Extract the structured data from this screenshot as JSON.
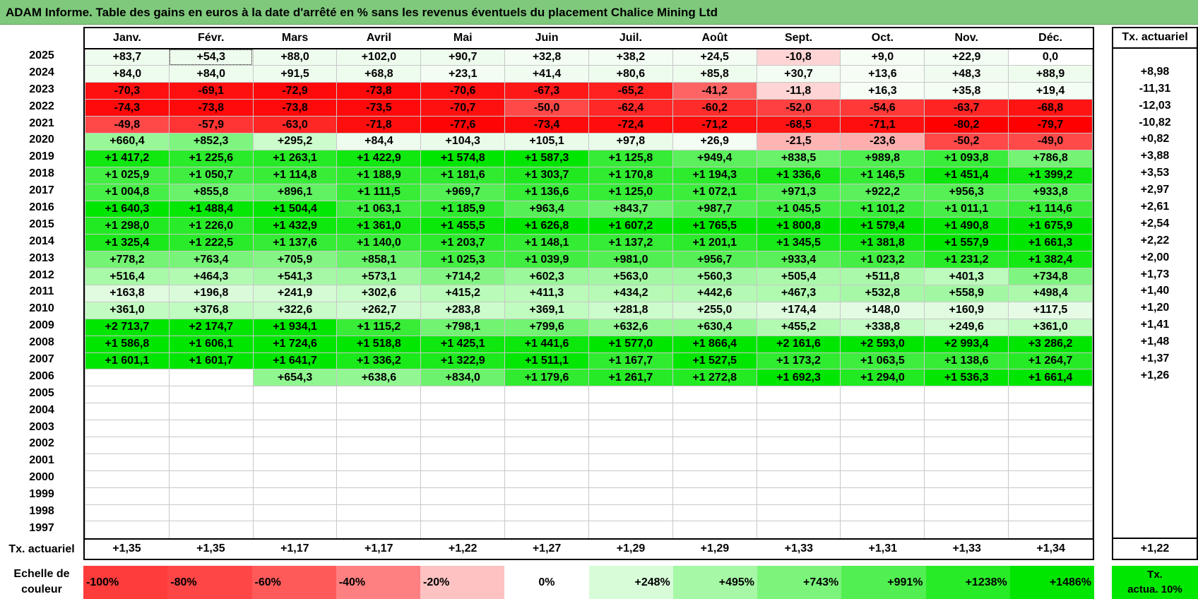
{
  "title": "ADAM Informe. Table des gains en euros à la date d'arrêté en % sans les revenus éventuels du placement Chalice Mining Ltd",
  "months": [
    "Janv.",
    "Févr.",
    "Mars",
    "Avril",
    "Mai",
    "Juin",
    "Juil.",
    "Août",
    "Sept.",
    "Oct.",
    "Nov.",
    "Déc."
  ],
  "act_header": "Tx. actuariel",
  "rows": [
    {
      "year": "2025",
      "act": "",
      "cells": [
        [
          "+83,7",
          "#eefcee"
        ],
        [
          "+54,3",
          "#eefcee"
        ],
        [
          "+88,0",
          "#eefcee"
        ],
        [
          "+102,0",
          "#eefcee"
        ],
        [
          "+90,7",
          "#eefcee"
        ],
        [
          "+32,8",
          "#f3fdf3"
        ],
        [
          "+38,2",
          "#f3fdf3"
        ],
        [
          "+24,5",
          "#f3fdf3"
        ],
        [
          "-10,8",
          "#ffd4d4"
        ],
        [
          "+9,0",
          "#f5fdf5"
        ],
        [
          "+22,9",
          "#f3fdf3"
        ],
        [
          "0,0",
          "#ffffff"
        ]
      ]
    },
    {
      "year": "2024",
      "act": "+8,98",
      "cells": [
        [
          "+84,0",
          "#eefcee"
        ],
        [
          "+84,0",
          "#eefcee"
        ],
        [
          "+91,5",
          "#eefcee"
        ],
        [
          "+68,8",
          "#eefcee"
        ],
        [
          "+23,1",
          "#f3fdf3"
        ],
        [
          "+41,4",
          "#f0fcf0"
        ],
        [
          "+80,6",
          "#eefcee"
        ],
        [
          "+85,8",
          "#eefcee"
        ],
        [
          "+30,7",
          "#f3fdf3"
        ],
        [
          "+13,6",
          "#f5fdf5"
        ],
        [
          "+48,3",
          "#f0fcf0"
        ],
        [
          "+88,9",
          "#eefcee"
        ]
      ]
    },
    {
      "year": "2023",
      "act": "-11,31",
      "cells": [
        [
          "-70,3",
          "#ff1010"
        ],
        [
          "-69,1",
          "#ff1010"
        ],
        [
          "-72,9",
          "#ff0a0a"
        ],
        [
          "-73,8",
          "#ff0a0a"
        ],
        [
          "-70,6",
          "#ff1010"
        ],
        [
          "-67,3",
          "#ff1818"
        ],
        [
          "-65,2",
          "#ff2020"
        ],
        [
          "-41,2",
          "#ff6464"
        ],
        [
          "-11,8",
          "#ffd4d4"
        ],
        [
          "+16,3",
          "#f5fdf5"
        ],
        [
          "+35,8",
          "#f3fdf3"
        ],
        [
          "+19,4",
          "#f3fdf3"
        ]
      ]
    },
    {
      "year": "2022",
      "act": "-12,03",
      "cells": [
        [
          "-74,3",
          "#ff0a0a"
        ],
        [
          "-73,8",
          "#ff0a0a"
        ],
        [
          "-73,8",
          "#ff0a0a"
        ],
        [
          "-73,5",
          "#ff0a0a"
        ],
        [
          "-70,7",
          "#ff1010"
        ],
        [
          "-50,0",
          "#ff4848"
        ],
        [
          "-62,4",
          "#ff2828"
        ],
        [
          "-60,2",
          "#ff2c2c"
        ],
        [
          "-52,0",
          "#ff4040"
        ],
        [
          "-54,6",
          "#ff3838"
        ],
        [
          "-63,7",
          "#ff2424"
        ],
        [
          "-68,8",
          "#ff1414"
        ]
      ]
    },
    {
      "year": "2021",
      "act": "-10,82",
      "cells": [
        [
          "-49,8",
          "#ff4848"
        ],
        [
          "-57,9",
          "#ff3434"
        ],
        [
          "-63,0",
          "#ff2626"
        ],
        [
          "-71,8",
          "#ff0e0e"
        ],
        [
          "-77,6",
          "#ff0404"
        ],
        [
          "-73,4",
          "#ff0a0a"
        ],
        [
          "-72,4",
          "#ff0c0c"
        ],
        [
          "-71,2",
          "#ff0e0e"
        ],
        [
          "-68,5",
          "#ff1414"
        ],
        [
          "-71,1",
          "#ff0e0e"
        ],
        [
          "-80,2",
          "#ff0000"
        ],
        [
          "-79,7",
          "#ff0000"
        ]
      ]
    },
    {
      "year": "2020",
      "act": "+0,82",
      "cells": [
        [
          "+660,4",
          "#98f898"
        ],
        [
          "+852,3",
          "#7ef57e"
        ],
        [
          "+295,2",
          "#ccfccc"
        ],
        [
          "+84,4",
          "#eefcee"
        ],
        [
          "+104,3",
          "#eafbea"
        ],
        [
          "+105,1",
          "#eafbea"
        ],
        [
          "+97,8",
          "#eafbea"
        ],
        [
          "+26,9",
          "#f3fdf3"
        ],
        [
          "-21,5",
          "#ffb4b4"
        ],
        [
          "-23,6",
          "#ffaeae"
        ],
        [
          "-50,2",
          "#ff4848"
        ],
        [
          "-49,0",
          "#ff4a4a"
        ]
      ]
    },
    {
      "year": "2019",
      "act": "+3,88",
      "cells": [
        [
          "+1 417,2",
          "#10e810"
        ],
        [
          "+1 225,6",
          "#2aeb2a"
        ],
        [
          "+1 263,1",
          "#26ea26"
        ],
        [
          "+1 422,9",
          "#10e810"
        ],
        [
          "+1 574,8",
          "#00e600"
        ],
        [
          "+1 587,3",
          "#00e600"
        ],
        [
          "+1 125,8",
          "#36ec36"
        ],
        [
          "+949,4",
          "#5cf05c"
        ],
        [
          "+838,5",
          "#6af26a"
        ],
        [
          "+989,8",
          "#50ef50"
        ],
        [
          "+1 093,8",
          "#3aed3a"
        ],
        [
          "+786,8",
          "#74f374"
        ]
      ]
    },
    {
      "year": "2018",
      "act": "+3,53",
      "cells": [
        [
          "+1 025,9",
          "#44ee44"
        ],
        [
          "+1 050,7",
          "#40ed40"
        ],
        [
          "+1 114,8",
          "#38ec38"
        ],
        [
          "+1 188,9",
          "#2eeb2e"
        ],
        [
          "+1 181,6",
          "#30eb30"
        ],
        [
          "+1 303,7",
          "#20e920"
        ],
        [
          "+1 170,8",
          "#30eb30"
        ],
        [
          "+1 194,3",
          "#2eeb2e"
        ],
        [
          "+1 336,6",
          "#1ae91a"
        ],
        [
          "+1 146,5",
          "#34ec34"
        ],
        [
          "+1 451,4",
          "#0ce80c"
        ],
        [
          "+1 399,2",
          "#12e812"
        ]
      ]
    },
    {
      "year": "2017",
      "act": "+2,97",
      "cells": [
        [
          "+1 004,8",
          "#48ee48"
        ],
        [
          "+855,8",
          "#6af26a"
        ],
        [
          "+896,1",
          "#62f162"
        ],
        [
          "+1 111,5",
          "#38ec38"
        ],
        [
          "+969,7",
          "#54ef54"
        ],
        [
          "+1 136,6",
          "#36ec36"
        ],
        [
          "+1 125,0",
          "#36ec36"
        ],
        [
          "+1 072,1",
          "#3ced3c"
        ],
        [
          "+971,3",
          "#54ef54"
        ],
        [
          "+922,2",
          "#5cf05c"
        ],
        [
          "+956,3",
          "#56f056"
        ],
        [
          "+933,8",
          "#5af05a"
        ]
      ]
    },
    {
      "year": "2016",
      "act": "+2,61",
      "cells": [
        [
          "+1 640,3",
          "#00e600"
        ],
        [
          "+1 488,4",
          "#06e706"
        ],
        [
          "+1 504,4",
          "#04e704"
        ],
        [
          "+1 063,1",
          "#3eed3e"
        ],
        [
          "+1 185,9",
          "#2eeb2e"
        ],
        [
          "+963,4",
          "#56f056"
        ],
        [
          "+843,7",
          "#6cf26c"
        ],
        [
          "+987,7",
          "#52ef52"
        ],
        [
          "+1 045,5",
          "#42ed42"
        ],
        [
          "+1 101,2",
          "#3aed3a"
        ],
        [
          "+1 011,1",
          "#48ee48"
        ],
        [
          "+1 114,6",
          "#38ec38"
        ]
      ]
    },
    {
      "year": "2015",
      "act": "+2,54",
      "cells": [
        [
          "+1 298,0",
          "#22ea22"
        ],
        [
          "+1 226,0",
          "#2aeb2a"
        ],
        [
          "+1 432,9",
          "#0ee80e"
        ],
        [
          "+1 361,0",
          "#16e916"
        ],
        [
          "+1 455,5",
          "#0ae80a"
        ],
        [
          "+1 626,8",
          "#00e600"
        ],
        [
          "+1 607,2",
          "#00e600"
        ],
        [
          "+1 765,5",
          "#00e600"
        ],
        [
          "+1 800,8",
          "#00e600"
        ],
        [
          "+1 579,4",
          "#00e600"
        ],
        [
          "+1 490,8",
          "#06e706"
        ],
        [
          "+1 675,9",
          "#00e600"
        ]
      ]
    },
    {
      "year": "2014",
      "act": "+2,22",
      "cells": [
        [
          "+1 325,4",
          "#1ce91c"
        ],
        [
          "+1 222,5",
          "#2aeb2a"
        ],
        [
          "+1 137,6",
          "#36ec36"
        ],
        [
          "+1 140,0",
          "#36ec36"
        ],
        [
          "+1 203,7",
          "#2ceb2c"
        ],
        [
          "+1 148,1",
          "#34ec34"
        ],
        [
          "+1 137,2",
          "#36ec36"
        ],
        [
          "+1 201,1",
          "#2ceb2c"
        ],
        [
          "+1 345,5",
          "#18e918"
        ],
        [
          "+1 381,8",
          "#14e914"
        ],
        [
          "+1 557,9",
          "#00e600"
        ],
        [
          "+1 661,3",
          "#00e600"
        ]
      ]
    },
    {
      "year": "2013",
      "act": "+2,00",
      "cells": [
        [
          "+778,2",
          "#74f374"
        ],
        [
          "+763,4",
          "#78f478"
        ],
        [
          "+705,9",
          "#84f584"
        ],
        [
          "+858,1",
          "#6af26a"
        ],
        [
          "+1 025,3",
          "#44ee44"
        ],
        [
          "+1 039,9",
          "#42ed42"
        ],
        [
          "+981,0",
          "#52ef52"
        ],
        [
          "+956,7",
          "#56f056"
        ],
        [
          "+933,4",
          "#5af05a"
        ],
        [
          "+1 023,2",
          "#44ee44"
        ],
        [
          "+1 231,2",
          "#28eb28"
        ],
        [
          "+1 382,4",
          "#14e914"
        ]
      ]
    },
    {
      "year": "2012",
      "act": "+1,73",
      "cells": [
        [
          "+516,4",
          "#a8f9a8"
        ],
        [
          "+464,3",
          "#b2fab2"
        ],
        [
          "+541,3",
          "#a6f8a6"
        ],
        [
          "+573,1",
          "#a0f8a0"
        ],
        [
          "+714,2",
          "#84f584"
        ],
        [
          "+602,3",
          "#9af79a"
        ],
        [
          "+563,0",
          "#a2f8a2"
        ],
        [
          "+560,3",
          "#a2f8a2"
        ],
        [
          "+505,4",
          "#aaf9aa"
        ],
        [
          "+511,8",
          "#aaf9aa"
        ],
        [
          "+401,3",
          "#bcfbbc"
        ],
        [
          "+734,8",
          "#80f480"
        ]
      ]
    },
    {
      "year": "2011",
      "act": "+1,40",
      "cells": [
        [
          "+163,8",
          "#e0fbe0"
        ],
        [
          "+196,8",
          "#dafbda"
        ],
        [
          "+241,9",
          "#d4fbd4"
        ],
        [
          "+302,6",
          "#cafbca"
        ],
        [
          "+415,2",
          "#bafbba"
        ],
        [
          "+411,3",
          "#bafbba"
        ],
        [
          "+434,2",
          "#b6fab6"
        ],
        [
          "+442,6",
          "#b4fab4"
        ],
        [
          "+467,3",
          "#b0fab0"
        ],
        [
          "+532,8",
          "#a6f8a6"
        ],
        [
          "+558,9",
          "#a2f8a2"
        ],
        [
          "+498,4",
          "#acf9ac"
        ]
      ]
    },
    {
      "year": "2010",
      "act": "+1,20",
      "cells": [
        [
          "+361,0",
          "#c2fbc2"
        ],
        [
          "+376,8",
          "#c0fbc0"
        ],
        [
          "+322,6",
          "#c8fbc8"
        ],
        [
          "+262,7",
          "#d0fbd0"
        ],
        [
          "+283,8",
          "#ccfbcc"
        ],
        [
          "+369,1",
          "#c0fbc0"
        ],
        [
          "+281,8",
          "#ccfbcc"
        ],
        [
          "+255,0",
          "#d2fbd2"
        ],
        [
          "+174,4",
          "#defbde"
        ],
        [
          "+148,0",
          "#e2fbe2"
        ],
        [
          "+160,9",
          "#e0fbe0"
        ],
        [
          "+117,5",
          "#e6fbe6"
        ]
      ]
    },
    {
      "year": "2009",
      "act": "+1,41",
      "cells": [
        [
          "+2 713,7",
          "#00e600"
        ],
        [
          "+2 174,7",
          "#00e600"
        ],
        [
          "+1 934,1",
          "#00e600"
        ],
        [
          "+1 115,2",
          "#38ec38"
        ],
        [
          "+798,1",
          "#72f372"
        ],
        [
          "+799,6",
          "#72f372"
        ],
        [
          "+632,6",
          "#94f794"
        ],
        [
          "+630,4",
          "#94f794"
        ],
        [
          "+455,2",
          "#b2fab2"
        ],
        [
          "+338,8",
          "#c4fbc4"
        ],
        [
          "+249,6",
          "#d2fbd2"
        ],
        [
          "+361,0",
          "#c2fbc2"
        ]
      ]
    },
    {
      "year": "2008",
      "act": "+1,48",
      "cells": [
        [
          "+1 586,8",
          "#00e600"
        ],
        [
          "+1 606,1",
          "#00e600"
        ],
        [
          "+1 724,6",
          "#00e600"
        ],
        [
          "+1 518,8",
          "#02e602"
        ],
        [
          "+1 425,1",
          "#0ee80e"
        ],
        [
          "+1 441,6",
          "#0ce80c"
        ],
        [
          "+1 577,0",
          "#00e600"
        ],
        [
          "+1 866,4",
          "#00e600"
        ],
        [
          "+2 161,6",
          "#00e600"
        ],
        [
          "+2 593,0",
          "#00e600"
        ],
        [
          "+2 993,4",
          "#00e600"
        ],
        [
          "+3 286,2",
          "#00e600"
        ]
      ]
    },
    {
      "year": "2007",
      "act": "+1,37",
      "cells": [
        [
          "+1 601,1",
          "#00e600"
        ],
        [
          "+1 601,7",
          "#00e600"
        ],
        [
          "+1 641,7",
          "#00e600"
        ],
        [
          "+1 336,2",
          "#1ae91a"
        ],
        [
          "+1 322,9",
          "#1ce91c"
        ],
        [
          "+1 511,1",
          "#04e704"
        ],
        [
          "+1 167,7",
          "#30eb30"
        ],
        [
          "+1 527,5",
          "#02e602"
        ],
        [
          "+1 173,2",
          "#30eb30"
        ],
        [
          "+1 063,5",
          "#3eed3e"
        ],
        [
          "+1 138,6",
          "#36ec36"
        ],
        [
          "+1 264,7",
          "#26ea26"
        ]
      ]
    },
    {
      "year": "2006",
      "act": "+1,26",
      "cells": [
        [
          "",
          ""
        ],
        [
          "",
          ""
        ],
        [
          "+654,3",
          "#90f690"
        ],
        [
          "+638,6",
          "#92f792"
        ],
        [
          "+834,0",
          "#6cf26c"
        ],
        [
          "+1 179,6",
          "#30eb30"
        ],
        [
          "+1 261,7",
          "#26ea26"
        ],
        [
          "+1 272,8",
          "#24ea24"
        ],
        [
          "+1 692,3",
          "#00e600"
        ],
        [
          "+1 294,0",
          "#22ea22"
        ],
        [
          "+1 536,3",
          "#02e602"
        ],
        [
          "+1 661,4",
          "#00e600"
        ]
      ]
    },
    {
      "year": "2005",
      "act": "",
      "cells": []
    },
    {
      "year": "2004",
      "act": "",
      "cells": []
    },
    {
      "year": "2003",
      "act": "",
      "cells": []
    },
    {
      "year": "2002",
      "act": "",
      "cells": []
    },
    {
      "year": "2001",
      "act": "",
      "cells": []
    },
    {
      "year": "2000",
      "act": "",
      "cells": []
    },
    {
      "year": "1999",
      "act": "",
      "cells": []
    },
    {
      "year": "1998",
      "act": "",
      "cells": []
    },
    {
      "year": "1997",
      "act": "",
      "cells": []
    }
  ],
  "footer": {
    "label": "Tx. actuariel",
    "values": [
      "+1,35",
      "+1,35",
      "+1,17",
      "+1,17",
      "+1,22",
      "+1,27",
      "+1,29",
      "+1,29",
      "+1,33",
      "+1,31",
      "+1,33",
      "+1,34"
    ],
    "act": "+1,22"
  },
  "scale": {
    "label_line1": "Echelle de",
    "label_line2": "couleur",
    "items": [
      {
        "text": "-100%",
        "color": "#ff3c3c",
        "kind": "neg"
      },
      {
        "text": "-80%",
        "color": "#ff4646",
        "kind": "neg"
      },
      {
        "text": "-60%",
        "color": "#ff5a5a",
        "kind": "neg"
      },
      {
        "text": "-40%",
        "color": "#ff8080",
        "kind": "neg"
      },
      {
        "text": "-20%",
        "color": "#ffc2c2",
        "kind": "neg"
      },
      {
        "text": "0%",
        "color": "#ffffff",
        "kind": "zero"
      },
      {
        "text": "+248%",
        "color": "#d8fcd8",
        "kind": "pos"
      },
      {
        "text": "+495%",
        "color": "#a6f8a6",
        "kind": "pos"
      },
      {
        "text": "+743%",
        "color": "#7cf47c",
        "kind": "pos"
      },
      {
        "text": "+991%",
        "color": "#52ef52",
        "kind": "pos"
      },
      {
        "text": "+1238%",
        "color": "#28eb28",
        "kind": "pos"
      },
      {
        "text": "+1486%",
        "color": "#00e600",
        "kind": "pos"
      }
    ],
    "act_line1": "Tx.",
    "act_line2": "actua. 10%"
  }
}
